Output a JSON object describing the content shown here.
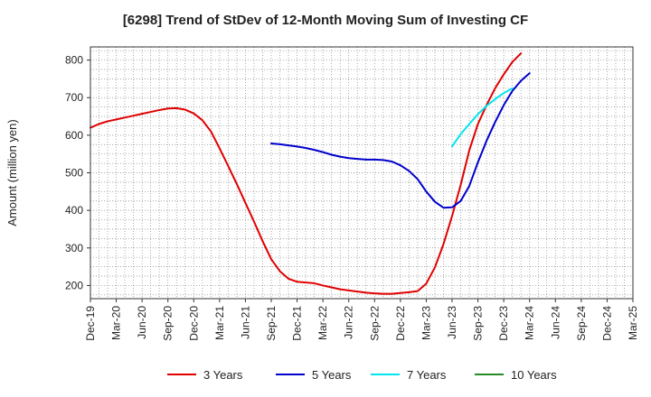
{
  "chart_data": {
    "type": "line",
    "title": "[6298]  Trend of StDev of 12-Month Moving Sum of Investing CF",
    "xlabel": "",
    "ylabel": "Amount (million yen)",
    "ylim": [
      165,
      835
    ],
    "yticks": [
      200,
      300,
      400,
      500,
      600,
      700,
      800
    ],
    "grid": true,
    "legend_position": "bottom",
    "x_tick_labels": [
      "Dec-19",
      "Mar-20",
      "Jun-20",
      "Sep-20",
      "Dec-20",
      "Mar-21",
      "Jun-21",
      "Sep-21",
      "Dec-21",
      "Mar-22",
      "Jun-22",
      "Sep-22",
      "Dec-22",
      "Mar-23",
      "Jun-23",
      "Sep-23",
      "Dec-23",
      "Mar-24",
      "Jun-24",
      "Sep-24",
      "Dec-24",
      "Mar-25"
    ],
    "x_start": "Dec-19",
    "series": [
      {
        "name": "3 Years",
        "color": "#e00000",
        "values": [
          620,
          630,
          637,
          642,
          647,
          652,
          657,
          662,
          667,
          671,
          672,
          668,
          658,
          640,
          610,
          565,
          518,
          470,
          420,
          370,
          318,
          270,
          238,
          218,
          210,
          208,
          206,
          200,
          195,
          190,
          187,
          184,
          181,
          179,
          178,
          178,
          180,
          182,
          185,
          205,
          248,
          310,
          385,
          468,
          560,
          630,
          680,
          725,
          762,
          795,
          818
        ]
      },
      {
        "name": "5 Years",
        "color": "#0000cc",
        "start_index": 21,
        "values": [
          578,
          576,
          573,
          570,
          566,
          561,
          555,
          548,
          543,
          539,
          537,
          535,
          535,
          534,
          530,
          520,
          505,
          483,
          450,
          423,
          407,
          408,
          425,
          465,
          528,
          585,
          635,
          680,
          718,
          745,
          765
        ]
      },
      {
        "name": "7 Years",
        "color": "#00e5ee",
        "start_index": 42,
        "values": [
          570,
          603,
          630,
          656,
          678,
          696,
          712,
          725
        ]
      },
      {
        "name": "10 Years",
        "color": "#228b22",
        "values": []
      }
    ]
  }
}
